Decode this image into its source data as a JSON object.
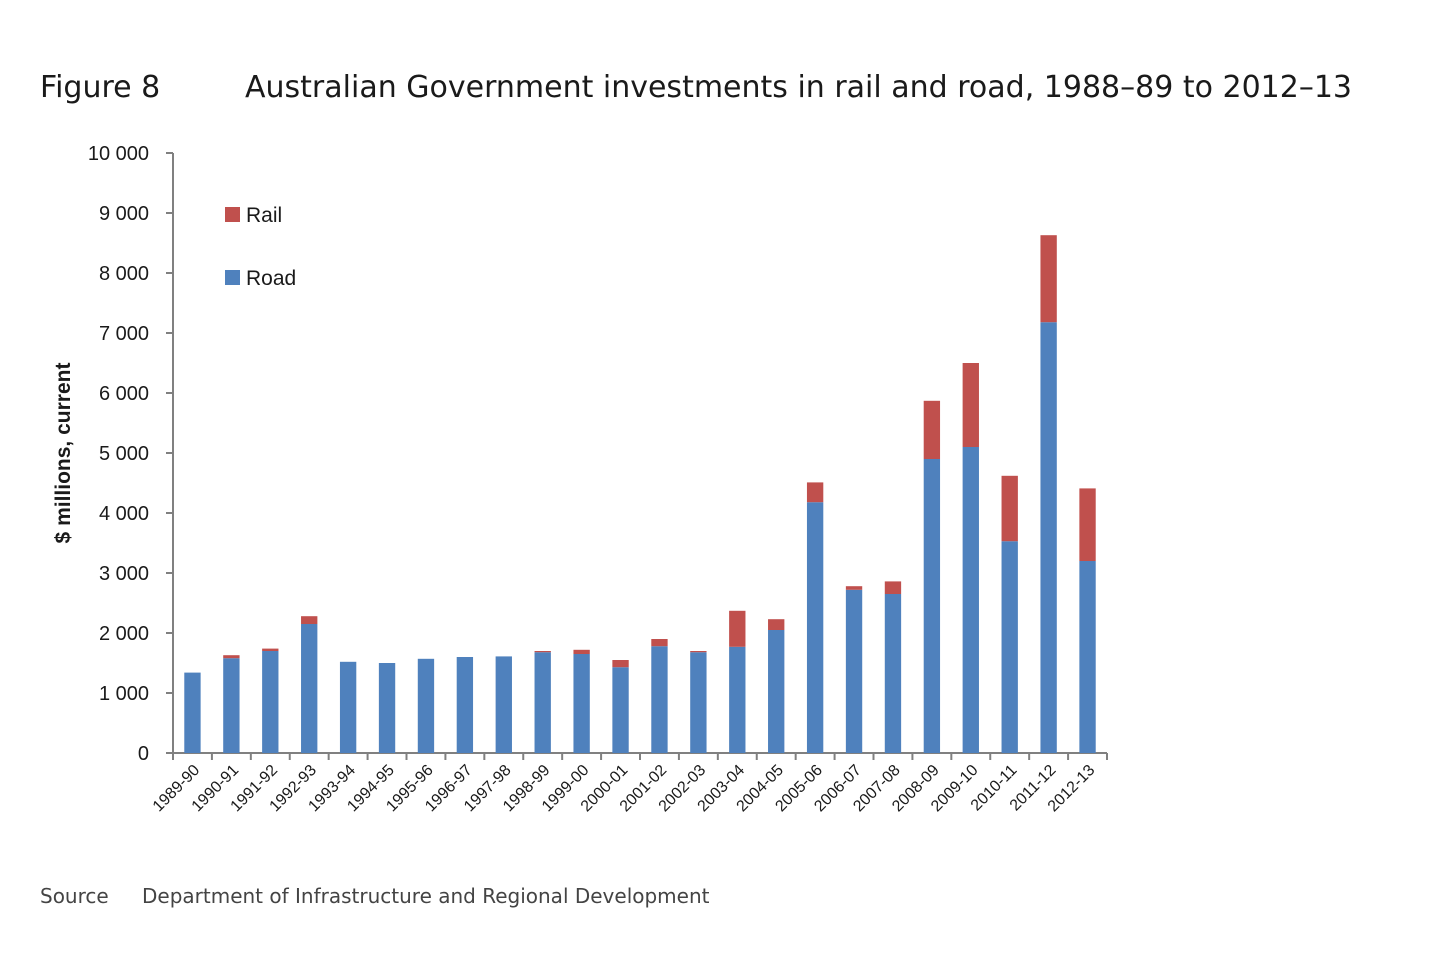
{
  "figure_label": "Figure 8",
  "title": "Australian Government investments in rail and road, 1988–89 to 2012–13",
  "source_label": "Source",
  "source_text": "Department of Infrastructure and Regional Development",
  "colors": {
    "rail": "#c0504d",
    "road": "#4f81bd",
    "axis": "#808080",
    "text": "#1a1a1a"
  },
  "chart_data": {
    "type": "bar",
    "stacked": true,
    "categories": [
      "1989-90",
      "1990-91",
      "1991-92",
      "1992-93",
      "1993-94",
      "1994-95",
      "1995-96",
      "1996-97",
      "1997-98",
      "1998-99",
      "1999-00",
      "2000-01",
      "2001-02",
      "2002-03",
      "2003-04",
      "2004-05",
      "2005-06",
      "2006-07",
      "2007-08",
      "2008-09",
      "2009-10",
      "2010-11",
      "2011-12",
      "2012-13"
    ],
    "series": [
      {
        "name": "Road",
        "color": "#4f81bd",
        "values": [
          1340,
          1580,
          1700,
          2150,
          1520,
          1500,
          1570,
          1600,
          1610,
          1680,
          1650,
          1430,
          1780,
          1680,
          1770,
          2050,
          4180,
          2720,
          2650,
          4900,
          5100,
          3530,
          7180,
          3200
        ]
      },
      {
        "name": "Rail",
        "color": "#c0504d",
        "values": [
          0,
          50,
          40,
          130,
          0,
          0,
          0,
          0,
          0,
          20,
          70,
          120,
          120,
          20,
          600,
          180,
          330,
          60,
          210,
          970,
          1400,
          1090,
          1450,
          1210
        ]
      }
    ],
    "ylabel": "$ millions, current",
    "xlabel": "",
    "ylim": [
      0,
      10000
    ],
    "yticks": [
      0,
      1000,
      2000,
      3000,
      4000,
      5000,
      6000,
      7000,
      8000,
      9000,
      10000
    ],
    "ytick_labels": [
      "0",
      "1 000",
      "2 000",
      "3 000",
      "4 000",
      "5 000",
      "6 000",
      "7 000",
      "8 000",
      "9 000",
      "10 000"
    ],
    "legend": {
      "placement": "top-left",
      "entries": [
        "Rail",
        "Road"
      ]
    },
    "grid": false
  }
}
